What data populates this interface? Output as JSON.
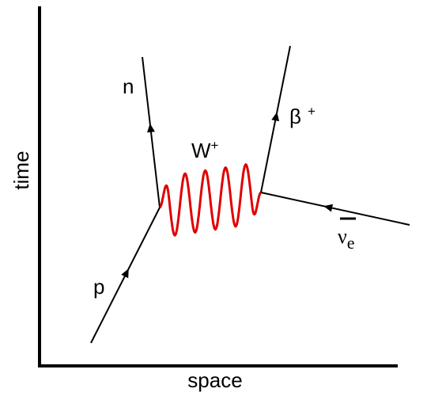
{
  "axes": {
    "y_label": "time",
    "x_label": "space"
  },
  "particles": {
    "proton": {
      "label": "p"
    },
    "neutron": {
      "label": "n"
    },
    "boson": {
      "label": "W",
      "sup": "+"
    },
    "positron": {
      "label": "β",
      "sup": "+"
    },
    "neutrino": {
      "label": "ν",
      "sub": "e"
    }
  }
}
